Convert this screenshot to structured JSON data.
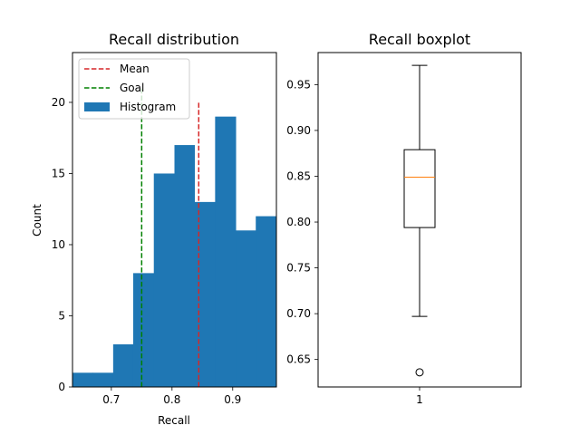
{
  "chart_data": [
    {
      "type": "bar",
      "subtype": "histogram",
      "title": "Recall distribution",
      "xlabel": "Recall",
      "ylabel": "Count",
      "xlim": [
        0.636,
        0.972
      ],
      "ylim": [
        0,
        23.5
      ],
      "xticks": [
        0.7,
        0.8,
        0.9
      ],
      "xtick_labels": [
        "0.7",
        "0.8",
        "0.9"
      ],
      "yticks": [
        0,
        5,
        10,
        15,
        20
      ],
      "ytick_labels": [
        "0",
        "5",
        "10",
        "15",
        "20"
      ],
      "bin_edges": [
        0.636,
        0.669,
        0.703,
        0.736,
        0.77,
        0.804,
        0.837,
        0.871,
        0.905,
        0.938,
        0.972
      ],
      "series": [
        {
          "name": "Histogram",
          "values": [
            1,
            1,
            3,
            8,
            15,
            17,
            13,
            19,
            11,
            12
          ],
          "color": "#1f77b4"
        }
      ],
      "lines": [
        {
          "name": "Mean",
          "x": 0.844,
          "y0": 0,
          "y1": 20,
          "color": "#d62728",
          "style": "dashed"
        },
        {
          "name": "Goal",
          "x": 0.75,
          "y0": 0,
          "y1": 21,
          "color": "#008000",
          "style": "dashed"
        }
      ],
      "legend": {
        "position": "top-left",
        "entries": [
          "Mean",
          "Goal",
          "Histogram"
        ]
      }
    },
    {
      "type": "boxplot",
      "title": "Recall boxplot",
      "categories": [
        "1"
      ],
      "ylim": [
        0.62,
        0.985
      ],
      "yticks": [
        0.65,
        0.7,
        0.75,
        0.8,
        0.85,
        0.9,
        0.95
      ],
      "ytick_labels": [
        "0.65",
        "0.70",
        "0.75",
        "0.80",
        "0.85",
        "0.90",
        "0.95"
      ],
      "box": {
        "whisker_low": 0.697,
        "q1": 0.794,
        "median": 0.849,
        "q3": 0.879,
        "whisker_high": 0.971,
        "outliers": [
          0.636
        ],
        "median_color": "#ff7f0e"
      }
    }
  ]
}
